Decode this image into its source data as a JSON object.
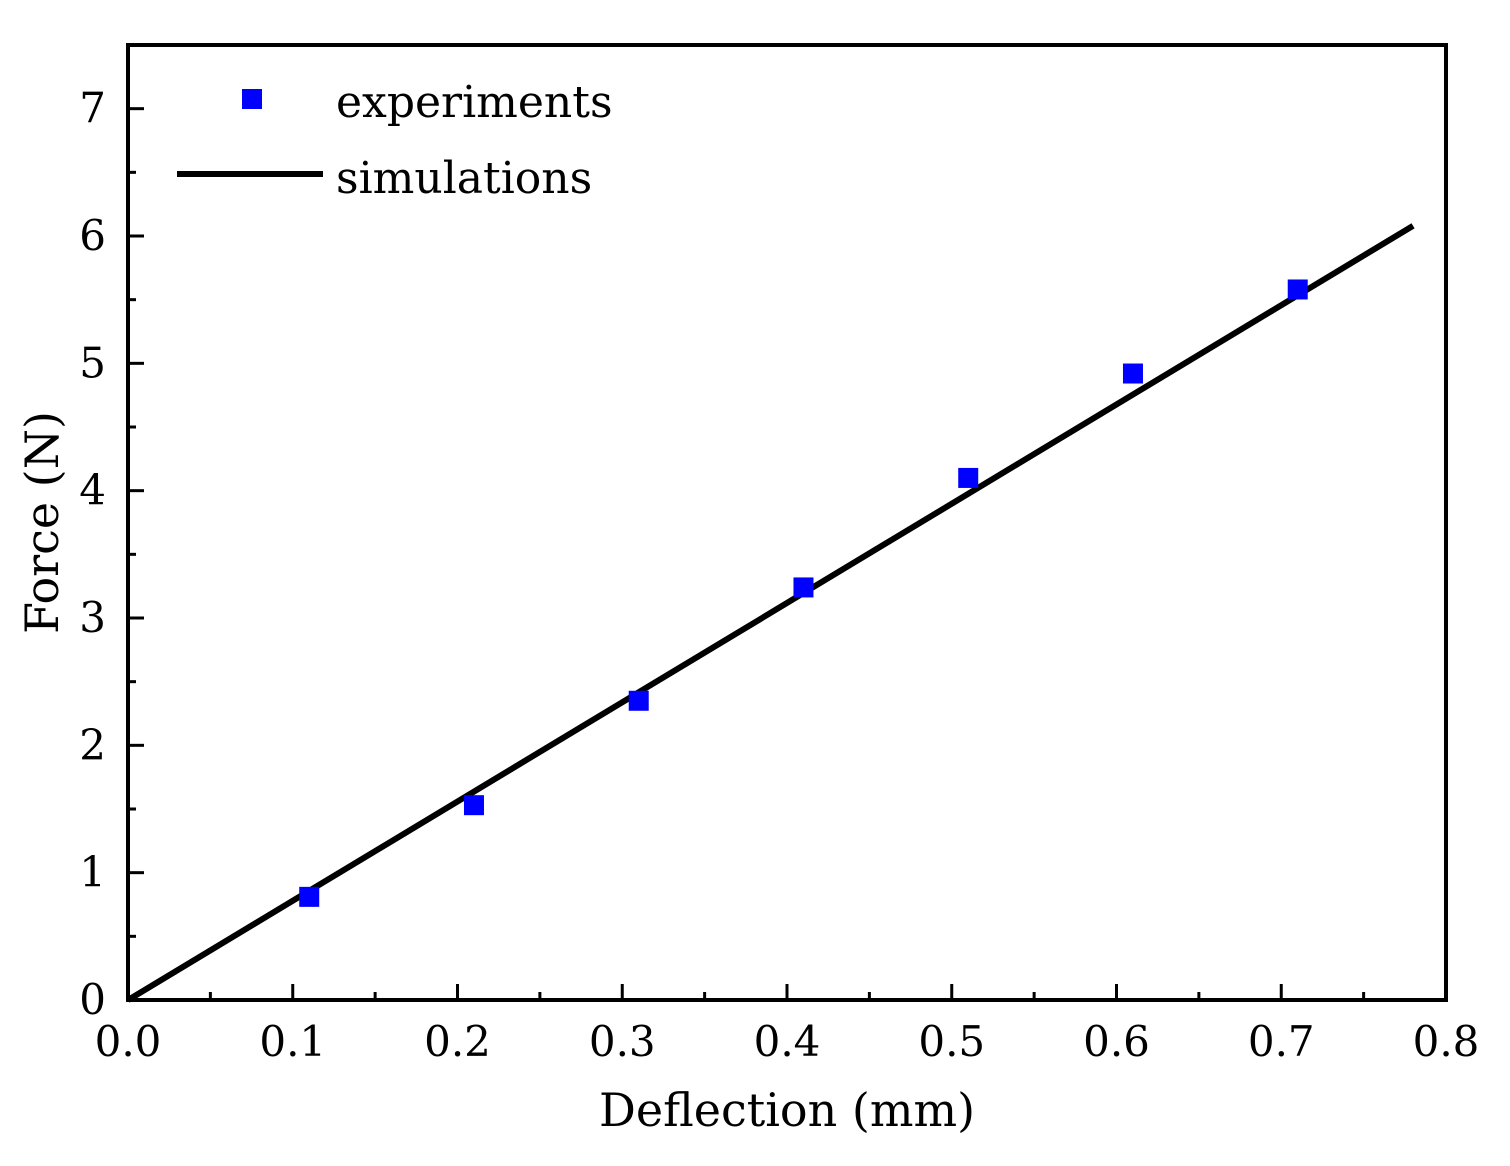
{
  "chart_data": {
    "type": "scatter",
    "title": "",
    "xlabel": "Deflection (mm)",
    "ylabel": "Force (N)",
    "xlim": [
      0.0,
      0.8
    ],
    "ylim": [
      0,
      7.5
    ],
    "x_ticks": [
      0.0,
      0.1,
      0.2,
      0.3,
      0.4,
      0.5,
      0.6,
      0.7,
      0.8
    ],
    "x_tick_labels": [
      "0.0",
      "0.1",
      "0.2",
      "0.3",
      "0.4",
      "0.5",
      "0.6",
      "0.7",
      "0.8"
    ],
    "y_ticks": [
      0,
      1,
      2,
      3,
      4,
      5,
      6,
      7
    ],
    "y_tick_labels": [
      "0",
      "1",
      "2",
      "3",
      "4",
      "5",
      "6",
      "7"
    ],
    "grid": false,
    "legend_position": "top-left",
    "series": [
      {
        "name": "experiments",
        "kind": "scatter",
        "marker": "square",
        "color": "#0000ff",
        "x": [
          0.11,
          0.21,
          0.31,
          0.41,
          0.51,
          0.61,
          0.71
        ],
        "y": [
          0.81,
          1.53,
          2.35,
          3.24,
          4.1,
          4.92,
          5.58
        ]
      },
      {
        "name": "simulations",
        "kind": "line",
        "color": "#000000",
        "x": [
          0.0,
          0.78
        ],
        "y": [
          0.0,
          6.08
        ]
      }
    ]
  }
}
